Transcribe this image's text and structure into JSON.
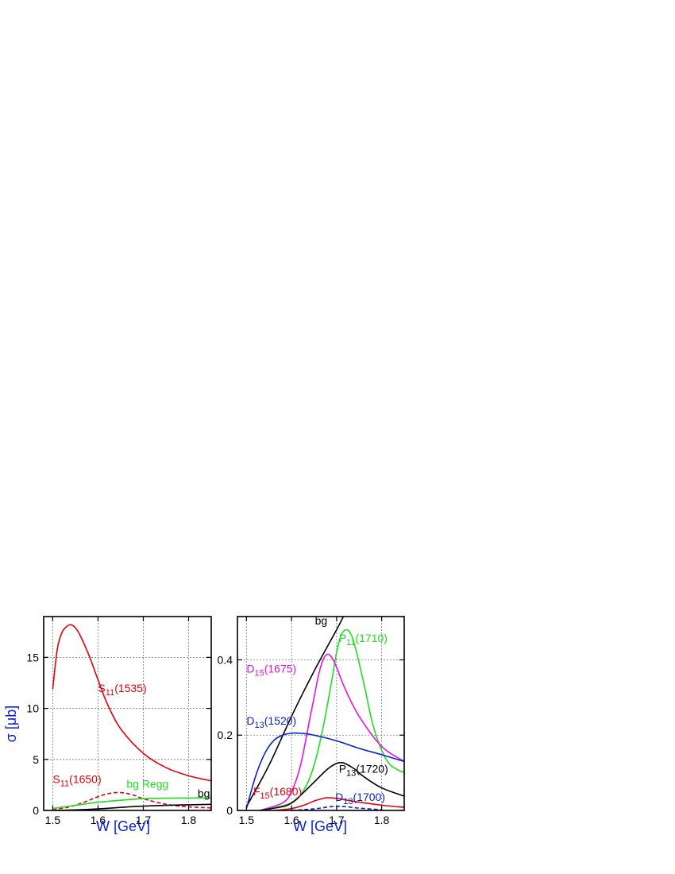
{
  "chart_data": [
    {
      "type": "line",
      "id": "left",
      "xlabel": "W [GeV]",
      "ylabel": "σ [μb]",
      "xlim": [
        1.48,
        1.85
      ],
      "ylim": [
        0,
        19
      ],
      "xticks": [
        1.5,
        1.6,
        1.7,
        1.8
      ],
      "xtick_labels": [
        "1.5",
        "1.6",
        "1.7",
        "1.8"
      ],
      "yticks": [
        0,
        5,
        10,
        15
      ],
      "ytick_labels": [
        "0",
        "5",
        "10",
        "15"
      ],
      "grid": true,
      "series": [
        {
          "name": "S11(1535)",
          "color": "#e8000b",
          "dash": false,
          "x": [
            1.5,
            1.51,
            1.52,
            1.53,
            1.54,
            1.55,
            1.56,
            1.58,
            1.6,
            1.62,
            1.65,
            1.7,
            1.75,
            1.8,
            1.85
          ],
          "y": [
            11.9,
            15.8,
            17.4,
            18.0,
            18.2,
            17.9,
            17.2,
            15.2,
            12.8,
            10.5,
            8.0,
            5.6,
            4.2,
            3.4,
            2.9
          ]
        },
        {
          "name": "S11(1650)",
          "color": "#e8000b",
          "dash": true,
          "x": [
            1.5,
            1.55,
            1.6,
            1.62,
            1.64,
            1.66,
            1.68,
            1.7,
            1.75,
            1.8,
            1.85
          ],
          "y": [
            0.05,
            0.5,
            1.35,
            1.62,
            1.75,
            1.7,
            1.48,
            1.15,
            0.6,
            0.35,
            0.25
          ]
        },
        {
          "name": "bg Regg",
          "color": "#22dd22",
          "dash": false,
          "x": [
            1.5,
            1.55,
            1.6,
            1.65,
            1.7,
            1.75,
            1.8,
            1.85
          ],
          "y": [
            0.2,
            0.5,
            0.8,
            1.0,
            1.15,
            1.2,
            1.22,
            1.22
          ]
        },
        {
          "name": "bg",
          "color": "#000000",
          "dash": false,
          "x": [
            1.5,
            1.55,
            1.6,
            1.65,
            1.7,
            1.75,
            1.8,
            1.85
          ],
          "y": [
            0.0,
            0.05,
            0.15,
            0.3,
            0.42,
            0.5,
            0.55,
            0.6
          ]
        }
      ],
      "labels": [
        {
          "base": "S",
          "sub": "11",
          "rest": "(1535)",
          "color": "#e8000b",
          "x": 1.6,
          "y": 11.6
        },
        {
          "base": "S",
          "sub": "11",
          "rest": "(1650)",
          "color": "#e8000b",
          "x": 1.5,
          "y": 2.7
        },
        {
          "base": "bg Regg",
          "sub": "",
          "rest": "",
          "color": "#22dd22",
          "x": 1.663,
          "y": 2.2
        },
        {
          "base": "bg",
          "sub": "",
          "rest": "",
          "color": "#000000",
          "x": 1.82,
          "y": 1.3
        }
      ]
    },
    {
      "type": "line",
      "id": "right",
      "xlabel": "W [GeV]",
      "ylabel": "",
      "xlim": [
        1.48,
        1.85
      ],
      "ylim": [
        0,
        0.515
      ],
      "xticks": [
        1.5,
        1.6,
        1.7,
        1.8
      ],
      "xtick_labels": [
        "1.5",
        "1.6",
        "1.7",
        "1.8"
      ],
      "yticks": [
        0,
        0.2,
        0.4
      ],
      "ytick_labels": [
        "0",
        "0.2",
        "0.4"
      ],
      "grid": true,
      "series": [
        {
          "name": "bg",
          "color": "#000000",
          "dash": false,
          "x": [
            1.5,
            1.55,
            1.6,
            1.65,
            1.7,
            1.715
          ],
          "y": [
            0.01,
            0.12,
            0.25,
            0.37,
            0.48,
            0.515
          ]
        },
        {
          "name": "P11(1710)",
          "color": "#22dd22",
          "dash": false,
          "x": [
            1.53,
            1.6,
            1.63,
            1.65,
            1.67,
            1.69,
            1.7,
            1.71,
            1.72,
            1.73,
            1.74,
            1.76,
            1.78,
            1.8,
            1.82,
            1.85
          ],
          "y": [
            0.0,
            0.02,
            0.06,
            0.12,
            0.22,
            0.35,
            0.42,
            0.465,
            0.48,
            0.472,
            0.44,
            0.34,
            0.23,
            0.16,
            0.12,
            0.1
          ]
        },
        {
          "name": "D15(1675)",
          "color": "#ee11ee",
          "dash": false,
          "x": [
            1.53,
            1.58,
            1.6,
            1.62,
            1.64,
            1.65,
            1.66,
            1.67,
            1.68,
            1.69,
            1.7,
            1.72,
            1.75,
            1.8,
            1.85
          ],
          "y": [
            0.0,
            0.02,
            0.05,
            0.12,
            0.24,
            0.3,
            0.36,
            0.4,
            0.415,
            0.405,
            0.38,
            0.32,
            0.25,
            0.17,
            0.13
          ]
        },
        {
          "name": "D13(1520)",
          "color": "#0a1fd6",
          "dash": false,
          "x": [
            1.5,
            1.52,
            1.54,
            1.56,
            1.58,
            1.6,
            1.62,
            1.65,
            1.7,
            1.75,
            1.8,
            1.85
          ],
          "y": [
            0.005,
            0.09,
            0.15,
            0.185,
            0.2,
            0.205,
            0.205,
            0.2,
            0.185,
            0.165,
            0.148,
            0.13
          ]
        },
        {
          "name": "P13(1720)",
          "color": "#000000",
          "dash": false,
          "x": [
            1.53,
            1.58,
            1.6,
            1.62,
            1.65,
            1.68,
            1.7,
            1.71,
            1.72,
            1.74,
            1.76,
            1.8,
            1.85
          ],
          "y": [
            0.0,
            0.01,
            0.02,
            0.04,
            0.075,
            0.11,
            0.125,
            0.127,
            0.124,
            0.11,
            0.09,
            0.06,
            0.038
          ]
        },
        {
          "name": "F15(1680)",
          "color": "#e8000b",
          "dash": false,
          "x": [
            1.56,
            1.6,
            1.63,
            1.65,
            1.67,
            1.68,
            1.7,
            1.72,
            1.75,
            1.8,
            1.85
          ],
          "y": [
            0.0,
            0.005,
            0.015,
            0.025,
            0.032,
            0.034,
            0.032,
            0.028,
            0.022,
            0.014,
            0.008
          ]
        },
        {
          "name": "D13(1700)",
          "color": "#0a1fd6",
          "dash": true,
          "x": [
            1.6,
            1.65,
            1.68,
            1.7,
            1.72,
            1.75,
            1.8
          ],
          "y": [
            0.0,
            0.004,
            0.009,
            0.011,
            0.01,
            0.006,
            0.002
          ]
        }
      ],
      "labels": [
        {
          "base": "bg",
          "sub": "",
          "rest": "",
          "color": "#000000",
          "x": 1.652,
          "y": 0.494
        },
        {
          "base": "P",
          "sub": "11",
          "rest": "(1710)",
          "color": "#22dd22",
          "x": 1.705,
          "y": 0.447
        },
        {
          "base": "D",
          "sub": "15",
          "rest": "(1675)",
          "color": "#ee11ee",
          "x": 1.5,
          "y": 0.366
        },
        {
          "base": "D",
          "sub": "13",
          "rest": "(1520)",
          "color": "#0a1fd6",
          "x": 1.5,
          "y": 0.228
        },
        {
          "base": "P",
          "sub": "13",
          "rest": "(1720)",
          "color": "#000000",
          "x": 1.705,
          "y": 0.1
        },
        {
          "base": "F",
          "sub": "15",
          "rest": "(1680)",
          "color": "#e8000b",
          "x": 1.515,
          "y": 0.04
        },
        {
          "base": "D",
          "sub": "13",
          "rest": "(1700)",
          "color": "#0a1fd6",
          "x": 1.697,
          "y": 0.025
        }
      ]
    }
  ]
}
